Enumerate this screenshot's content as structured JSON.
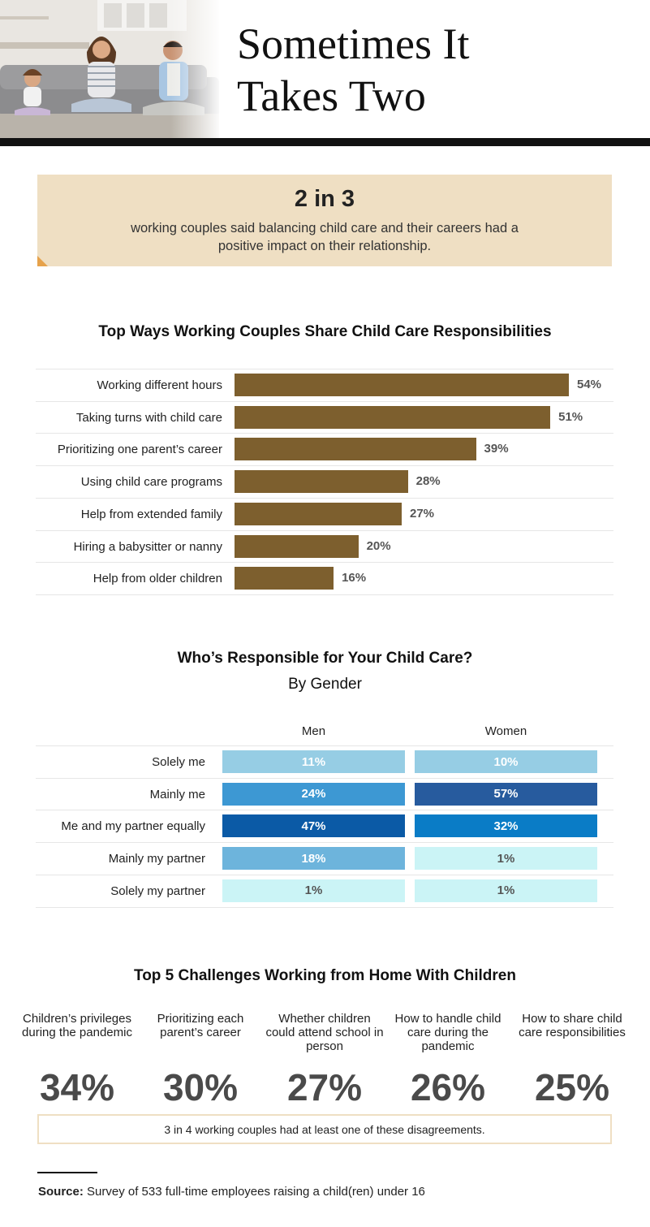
{
  "header": {
    "title_line1": "Sometimes It",
    "title_line2": "Takes Two"
  },
  "callout": {
    "stat": "2 in 3",
    "text": "working couples said balancing child care and their careers had a positive impact on their relationship.",
    "accent_color": "#efdfc3",
    "fold_color": "#e6a24b"
  },
  "chart_data": [
    {
      "type": "bar",
      "orientation": "horizontal",
      "title": "Top Ways Working Couples Share Child Care Responsibilities",
      "categories": [
        "Working different hours",
        "Taking turns with child care",
        "Prioritizing one parent’s career",
        "Using child care programs",
        "Help from extended family",
        "Hiring a babysitter or nanny",
        "Help from older children"
      ],
      "values": [
        54,
        51,
        39,
        28,
        27,
        20,
        16
      ],
      "value_labels": [
        "54%",
        "51%",
        "39%",
        "28%",
        "27%",
        "20%",
        "16%"
      ],
      "unit": "%",
      "bar_color": "#7d5f2e",
      "xlim": [
        0,
        54
      ]
    },
    {
      "type": "table",
      "title": "Who’s Responsible for Your Child Care?",
      "subtitle": "By Gender",
      "categories": [
        "Solely me",
        "Mainly me",
        "Me and my partner equally",
        "Mainly my partner",
        "Solely my partner"
      ],
      "series": [
        {
          "name": "Men",
          "values": [
            11,
            24,
            47,
            18,
            1
          ],
          "value_labels": [
            "11%",
            "24%",
            "47%",
            "18%",
            "1%"
          ],
          "colors": [
            "#96cde4",
            "#3d98d3",
            "#0b5aa6",
            "#6db4dc",
            "#cbf4f6"
          ]
        },
        {
          "name": "Women",
          "values": [
            10,
            57,
            32,
            1,
            1
          ],
          "value_labels": [
            "10%",
            "57%",
            "32%",
            "1%",
            "1%"
          ],
          "colors": [
            "#96cde4",
            "#275b9e",
            "#0a7cc6",
            "#cbf4f6",
            "#cbf4f6"
          ]
        }
      ]
    },
    {
      "type": "table",
      "title": "Top 5 Challenges Working from Home With Children",
      "categories": [
        "Children’s privileges during the pandemic",
        "Prioritizing each parent’s career",
        "Whether children could attend school in person",
        "How to handle child care during the pandemic",
        "How to share child care responsibilities"
      ],
      "values": [
        34,
        30,
        27,
        26,
        25
      ],
      "value_labels": [
        "34%",
        "30%",
        "27%",
        "26%",
        "25%"
      ],
      "unit": "%"
    }
  ],
  "challenges": {
    "items": [
      {
        "label": "Children’s privileges during the pandemic",
        "value": "34%"
      },
      {
        "label": "Prioritizing each parent’s career",
        "value": "30%"
      },
      {
        "label": "Whether children could attend school in person",
        "value": "27%"
      },
      {
        "label": "How to handle child care during the pandemic",
        "value": "26%"
      },
      {
        "label": "How to share child care responsibilities",
        "value": "25%"
      }
    ],
    "note": "3 in 4 working couples had at least one of these disagreements."
  },
  "source": {
    "label": "Source:",
    "text": "Survey of 533 full-time employees raising a child(ren) under 16"
  }
}
